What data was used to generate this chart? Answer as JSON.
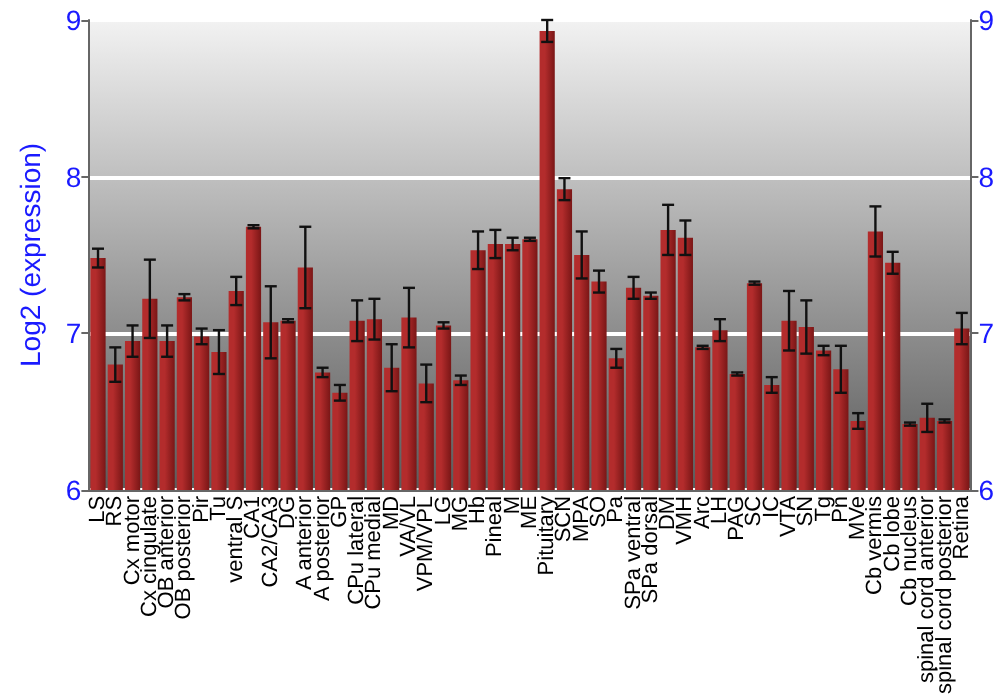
{
  "chart_data": {
    "type": "bar",
    "ylabel": "Log2 (expression)",
    "categories": [
      "LS",
      "RS",
      "Cx motor",
      "Cx cingulate",
      "OB anterior",
      "OB posterior",
      "Pir",
      "Tu",
      "ventral S",
      "CA1",
      "CA2/CA3",
      "DG",
      "A anterior",
      "A posterior",
      "GP",
      "CPu lateral",
      "CPu medial",
      "MD",
      "VA/VL",
      "VPM/VPL",
      "LG",
      "MG",
      "Hb",
      "Pineal",
      "M",
      "ME",
      "Pituitary",
      "SCN",
      "MPA",
      "SO",
      "Pa",
      "SPa ventral",
      "SPa dorsal",
      "DM",
      "VMH",
      "Arc",
      "LH",
      "PAG",
      "SC",
      "IC",
      "VTA",
      "SN",
      "Tg",
      "Pn",
      "MVe",
      "Cb vermis",
      "Cb lobe",
      "Cb nucleus",
      "spinal cord anterior",
      "spinal cord posterior",
      "Retina"
    ],
    "values": [
      7.48,
      6.8,
      6.95,
      7.22,
      6.95,
      7.23,
      6.98,
      6.88,
      7.27,
      7.68,
      7.07,
      7.08,
      7.42,
      6.75,
      6.62,
      7.08,
      7.09,
      6.78,
      7.1,
      6.68,
      7.05,
      6.7,
      7.53,
      7.57,
      7.57,
      7.6,
      8.93,
      7.92,
      7.5,
      7.33,
      6.84,
      7.29,
      7.24,
      7.66,
      7.61,
      6.91,
      7.02,
      6.74,
      7.32,
      6.67,
      7.08,
      7.04,
      6.89,
      6.77,
      6.44,
      7.65,
      7.45,
      6.42,
      6.46,
      6.44,
      7.03
    ],
    "errors": [
      0.06,
      0.11,
      0.1,
      0.25,
      0.1,
      0.02,
      0.05,
      0.14,
      0.09,
      0.01,
      0.23,
      0.01,
      0.26,
      0.03,
      0.05,
      0.13,
      0.13,
      0.15,
      0.19,
      0.12,
      0.02,
      0.03,
      0.12,
      0.09,
      0.04,
      0.01,
      0.07,
      0.07,
      0.15,
      0.07,
      0.06,
      0.07,
      0.02,
      0.16,
      0.11,
      0.01,
      0.07,
      0.01,
      0.01,
      0.05,
      0.19,
      0.17,
      0.03,
      0.15,
      0.05,
      0.16,
      0.07,
      0.01,
      0.09,
      0.01,
      0.1
    ],
    "color": "#b32c2c",
    "ylim": [
      6,
      9
    ],
    "yticks": [
      6,
      7,
      8,
      9
    ],
    "y2lim": [
      6,
      9
    ],
    "y2ticks": [
      6,
      7,
      8,
      9
    ],
    "grid": "y"
  }
}
